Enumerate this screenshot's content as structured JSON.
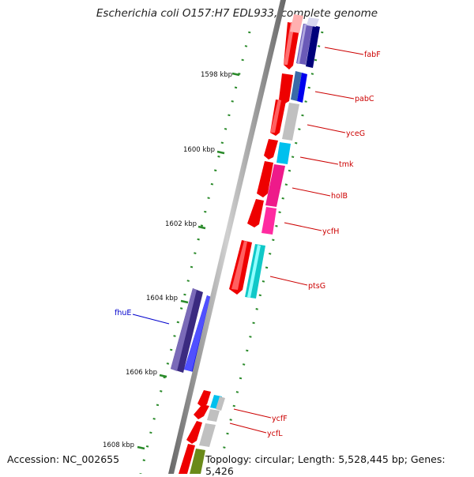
{
  "title": "Escherichia coli O157:H7 EDL933, complete genome",
  "accession": "Accession: NC_002655",
  "summary": "Topology: circular; Length: 5,528,445 bp; Genes: 5,426",
  "ruler_labels": [
    "1598 kbp",
    "1600 kbp",
    "1602 kbp",
    "1604 kbp",
    "1606 kbp",
    "1608 kbp"
  ],
  "genes": [
    {
      "name": "fabF",
      "color": "#cc0000"
    },
    {
      "name": "pabC",
      "color": "#cc0000"
    },
    {
      "name": "yceG",
      "color": "#cc0000"
    },
    {
      "name": "tmk",
      "color": "#cc0000"
    },
    {
      "name": "holB",
      "color": "#cc0000"
    },
    {
      "name": "ycfH",
      "color": "#cc0000"
    },
    {
      "name": "ptsG",
      "color": "#cc0000"
    },
    {
      "name": "fhuE",
      "color": "#0000cc"
    },
    {
      "name": "ycfF",
      "color": "#cc0000"
    },
    {
      "name": "ycfL",
      "color": "#cc0000"
    }
  ],
  "colors": {
    "backbone": "#8a8a8a",
    "tick": "#2a8a2a",
    "forward_cds": "#ee0000",
    "reverse_cds": "#5a4aa0"
  }
}
